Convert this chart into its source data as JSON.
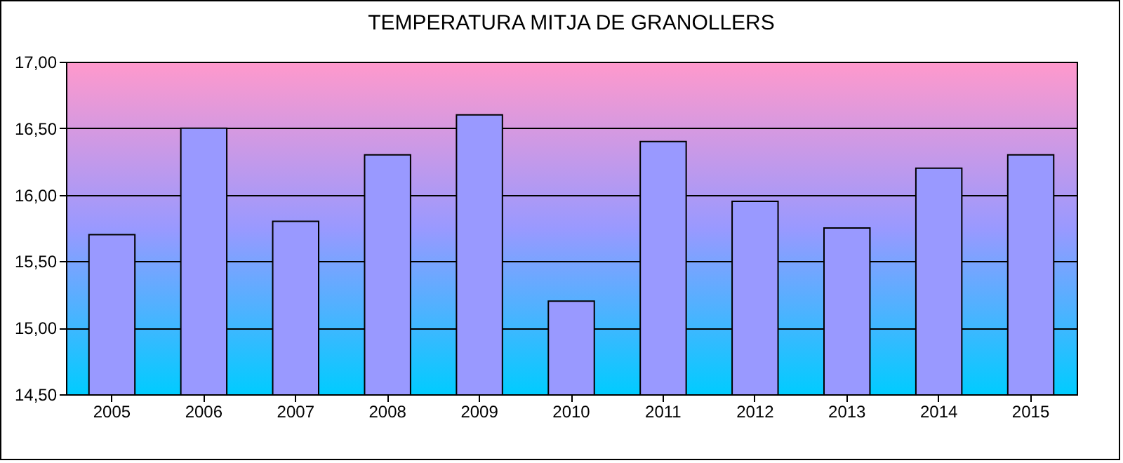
{
  "chart_data": {
    "type": "bar",
    "title": "TEMPERATURA MITJA DE GRANOLLERS",
    "categories": [
      "2005",
      "2006",
      "2007",
      "2008",
      "2009",
      "2010",
      "2011",
      "2012",
      "2013",
      "2014",
      "2015"
    ],
    "values": [
      15.7,
      16.5,
      15.8,
      16.3,
      16.6,
      15.2,
      16.4,
      15.95,
      15.75,
      16.2,
      16.3
    ],
    "color": "#9999ff",
    "ylim": [
      14.5,
      17
    ],
    "yticks": [
      {
        "value": 14.5,
        "label": "14,50"
      },
      {
        "value": 15,
        "label": "15,00"
      },
      {
        "value": 15.5,
        "label": "15,50"
      },
      {
        "value": 16,
        "label": "16,00"
      },
      {
        "value": 16.5,
        "label": "16,50"
      },
      {
        "value": 17,
        "label": "17,00"
      }
    ],
    "grid": "y"
  }
}
